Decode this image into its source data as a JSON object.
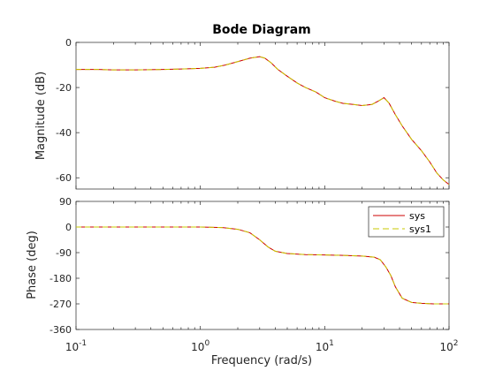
{
  "figure": {
    "title": "Bode Diagram",
    "xlabel": "Frequency  (rad/s)"
  },
  "colors": {
    "background": "#ffffff",
    "axes_face": "#ffffff",
    "axes_edge": "#262626",
    "tick_text": "#262626",
    "sys": "#cc0000",
    "sys1": "#c8c800"
  },
  "chart_data": [
    {
      "type": "line",
      "title": "Bode Diagram",
      "ylabel": "Magnitude (dB)",
      "xscale": "log",
      "xlim": [
        0.1,
        100
      ],
      "ylim": [
        -65,
        0
      ],
      "yticks": [
        0,
        -20,
        -40,
        -60
      ],
      "ytick_labels": [
        "0",
        "-20",
        "-40",
        "-60"
      ],
      "grid": false,
      "series": [
        {
          "name": "sys",
          "x": [
            0.1,
            0.15,
            0.2,
            0.3,
            0.5,
            0.7,
            1.0,
            1.3,
            1.6,
            2.0,
            2.5,
            3.0,
            3.3,
            3.7,
            4.2,
            5.0,
            6.0,
            7.0,
            8.5,
            10,
            12,
            14,
            17,
            20,
            24,
            27,
            30,
            33,
            37,
            42,
            50,
            60,
            70,
            80,
            90,
            100
          ],
          "y": [
            -12,
            -12,
            -12.2,
            -12.2,
            -12,
            -11.8,
            -11.5,
            -11,
            -10,
            -8.5,
            -7,
            -6.3,
            -7,
            -9,
            -12,
            -15,
            -18,
            -20,
            -22,
            -24.5,
            -26,
            -27,
            -27.5,
            -28,
            -27.5,
            -26,
            -24.5,
            -27,
            -32,
            -37,
            -43,
            -48,
            -53,
            -58,
            -61,
            -63
          ]
        },
        {
          "name": "sys1",
          "x": [
            0.1,
            0.15,
            0.2,
            0.3,
            0.5,
            0.7,
            1.0,
            1.3,
            1.6,
            2.0,
            2.5,
            3.0,
            3.3,
            3.7,
            4.2,
            5.0,
            6.0,
            7.0,
            8.5,
            10,
            12,
            14,
            17,
            20,
            24,
            27,
            30,
            33,
            37,
            42,
            50,
            60,
            70,
            80,
            90,
            100
          ],
          "y": [
            -12,
            -12,
            -12.2,
            -12.2,
            -12,
            -11.8,
            -11.5,
            -11,
            -10,
            -8.5,
            -7,
            -6.3,
            -7,
            -9,
            -12,
            -15,
            -18,
            -20,
            -22,
            -24.5,
            -26,
            -27,
            -27.5,
            -28,
            -27.5,
            -26,
            -24.5,
            -27,
            -32,
            -37,
            -43,
            -48,
            -53,
            -58,
            -61,
            -63
          ]
        }
      ]
    },
    {
      "type": "line",
      "xlabel": "Frequency  (rad/s)",
      "ylabel": "Phase (deg)",
      "xscale": "log",
      "xlim": [
        0.1,
        100
      ],
      "xticks": [
        0.1,
        1,
        10,
        100
      ],
      "xtick_labels": [
        {
          "base": "10",
          "exp": "-1"
        },
        {
          "base": "10",
          "exp": "0"
        },
        {
          "base": "10",
          "exp": "1"
        },
        {
          "base": "10",
          "exp": "2"
        }
      ],
      "ylim": [
        -360,
        90
      ],
      "yticks": [
        90,
        0,
        -90,
        -180,
        -270,
        -360
      ],
      "ytick_labels": [
        "90",
        "0",
        "-90",
        "-180",
        "-270",
        "-360"
      ],
      "grid": false,
      "legend": {
        "position": "top-right",
        "entries": [
          "sys",
          "sys1"
        ]
      },
      "series": [
        {
          "name": "sys",
          "x": [
            0.1,
            0.2,
            0.5,
            1.0,
            1.5,
            2.0,
            2.5,
            3.0,
            3.5,
            4.0,
            5.0,
            7.0,
            10,
            15,
            20,
            25,
            28,
            31,
            34,
            37,
            42,
            50,
            60,
            75,
            100
          ],
          "y": [
            0,
            0,
            0,
            0,
            -2,
            -8,
            -20,
            -45,
            -70,
            -85,
            -93,
            -97,
            -98,
            -100,
            -102,
            -106,
            -115,
            -140,
            -170,
            -210,
            -250,
            -265,
            -268,
            -270,
            -270
          ]
        },
        {
          "name": "sys1",
          "x": [
            0.1,
            0.2,
            0.5,
            1.0,
            1.5,
            2.0,
            2.5,
            3.0,
            3.5,
            4.0,
            5.0,
            7.0,
            10,
            15,
            20,
            25,
            28,
            31,
            34,
            37,
            42,
            50,
            60,
            75,
            100
          ],
          "y": [
            0,
            0,
            0,
            0,
            -2,
            -8,
            -20,
            -45,
            -70,
            -85,
            -93,
            -97,
            -98,
            -100,
            -102,
            -106,
            -115,
            -140,
            -170,
            -210,
            -250,
            -265,
            -268,
            -270,
            -270
          ]
        }
      ]
    }
  ]
}
